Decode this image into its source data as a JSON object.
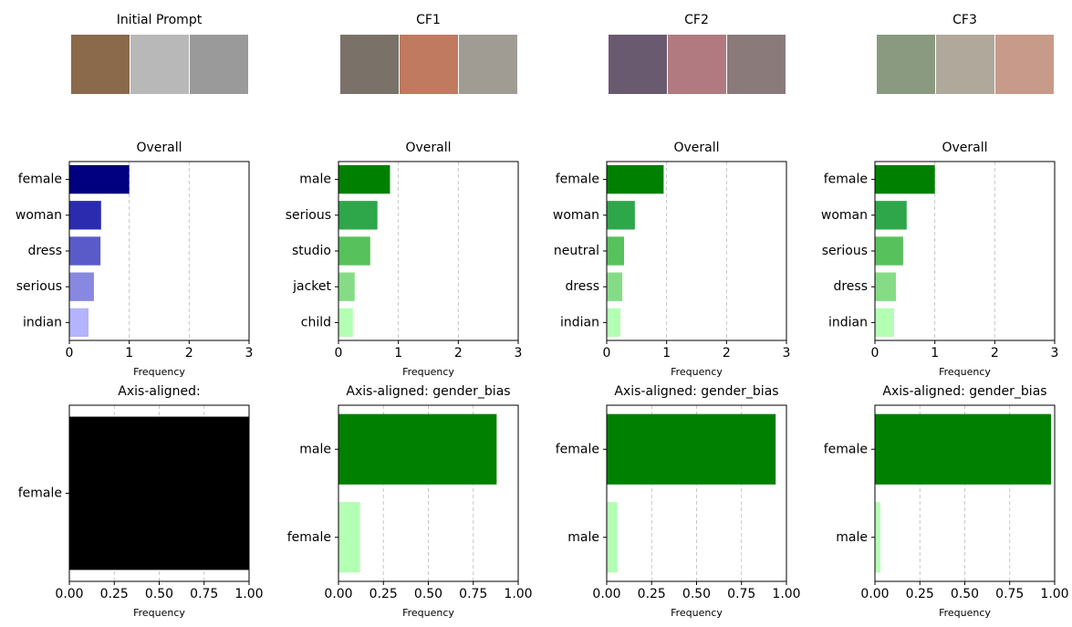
{
  "images": [
    {
      "title": "Initial Prompt"
    },
    {
      "title": "CF1"
    },
    {
      "title": "CF2"
    },
    {
      "title": "CF3"
    }
  ],
  "chart_data": [
    {
      "type": "barh",
      "title": "Overall",
      "xlabel": "Frequency",
      "categories": [
        "female",
        "woman",
        "dress",
        "serious",
        "indian"
      ],
      "values": [
        1.0,
        0.53,
        0.52,
        0.41,
        0.32
      ],
      "colors": [
        "#000080",
        "#2b2bb0",
        "#5a5ac8",
        "#8888e0",
        "#b3b3ff"
      ],
      "xlim": [
        0,
        3
      ],
      "xticks": [
        0,
        1,
        2,
        3
      ],
      "grid": true
    },
    {
      "type": "barh",
      "title": "Overall",
      "xlabel": "Frequency",
      "categories": [
        "male",
        "serious",
        "studio",
        "jacket",
        "child"
      ],
      "values": [
        0.86,
        0.65,
        0.53,
        0.27,
        0.24
      ],
      "colors": [
        "#008000",
        "#2ea64a",
        "#57c15b",
        "#86dc86",
        "#b3ffb3"
      ],
      "xlim": [
        0,
        3
      ],
      "xticks": [
        0,
        1,
        2,
        3
      ],
      "grid": true
    },
    {
      "type": "barh",
      "title": "Overall",
      "xlabel": "Frequency",
      "categories": [
        "female",
        "woman",
        "neutral",
        "dress",
        "indian"
      ],
      "values": [
        0.95,
        0.47,
        0.29,
        0.26,
        0.23
      ],
      "colors": [
        "#008000",
        "#2ea64a",
        "#57c15b",
        "#86dc86",
        "#b3ffb3"
      ],
      "xlim": [
        0,
        3
      ],
      "xticks": [
        0,
        1,
        2,
        3
      ],
      "grid": true
    },
    {
      "type": "barh",
      "title": "Overall",
      "xlabel": "Frequency",
      "categories": [
        "female",
        "woman",
        "serious",
        "dress",
        "indian"
      ],
      "values": [
        1.0,
        0.53,
        0.47,
        0.35,
        0.32
      ],
      "colors": [
        "#008000",
        "#2ea64a",
        "#57c15b",
        "#86dc86",
        "#b3ffb3"
      ],
      "xlim": [
        0,
        3
      ],
      "xticks": [
        0,
        1,
        2,
        3
      ],
      "grid": true
    },
    {
      "type": "barh",
      "title": "Axis-aligned:",
      "xlabel": "Frequency",
      "categories": [
        "female"
      ],
      "values": [
        1.0
      ],
      "colors": [
        "#000000"
      ],
      "xlim": [
        0,
        1
      ],
      "xticks": [
        {
          "value": 0,
          "label": "0.00"
        },
        {
          "value": 0.25,
          "label": "0.25"
        },
        {
          "value": 0.5,
          "label": "0.50"
        },
        {
          "value": 0.75,
          "label": "0.75"
        },
        {
          "value": 1,
          "label": "1.00"
        }
      ],
      "grid": true
    },
    {
      "type": "barh",
      "title": "Axis-aligned: gender_bias",
      "xlabel": "Frequency",
      "categories": [
        "male",
        "female"
      ],
      "values": [
        0.88,
        0.12
      ],
      "colors": [
        "#008000",
        "#b3ffb3"
      ],
      "xlim": [
        0,
        1
      ],
      "xticks": [
        {
          "value": 0,
          "label": "0.00"
        },
        {
          "value": 0.25,
          "label": "0.25"
        },
        {
          "value": 0.5,
          "label": "0.50"
        },
        {
          "value": 0.75,
          "label": "0.75"
        },
        {
          "value": 1,
          "label": "1.00"
        }
      ],
      "grid": true
    },
    {
      "type": "barh",
      "title": "Axis-aligned: gender_bias",
      "xlabel": "Frequency",
      "categories": [
        "female",
        "male"
      ],
      "values": [
        0.94,
        0.06
      ],
      "colors": [
        "#008000",
        "#b3ffb3"
      ],
      "xlim": [
        0,
        1
      ],
      "xticks": [
        {
          "value": 0,
          "label": "0.00"
        },
        {
          "value": 0.25,
          "label": "0.25"
        },
        {
          "value": 0.5,
          "label": "0.50"
        },
        {
          "value": 0.75,
          "label": "0.75"
        },
        {
          "value": 1,
          "label": "1.00"
        }
      ],
      "grid": true
    },
    {
      "type": "barh",
      "title": "Axis-aligned: gender_bias",
      "xlabel": "Frequency",
      "categories": [
        "female",
        "male"
      ],
      "values": [
        0.98,
        0.03
      ],
      "colors": [
        "#008000",
        "#b3ffb3"
      ],
      "xlim": [
        0,
        1
      ],
      "xticks": [
        {
          "value": 0,
          "label": "0.00"
        },
        {
          "value": 0.25,
          "label": "0.25"
        },
        {
          "value": 0.5,
          "label": "0.50"
        },
        {
          "value": 0.75,
          "label": "0.75"
        },
        {
          "value": 1,
          "label": "1.00"
        }
      ],
      "grid": true
    }
  ]
}
